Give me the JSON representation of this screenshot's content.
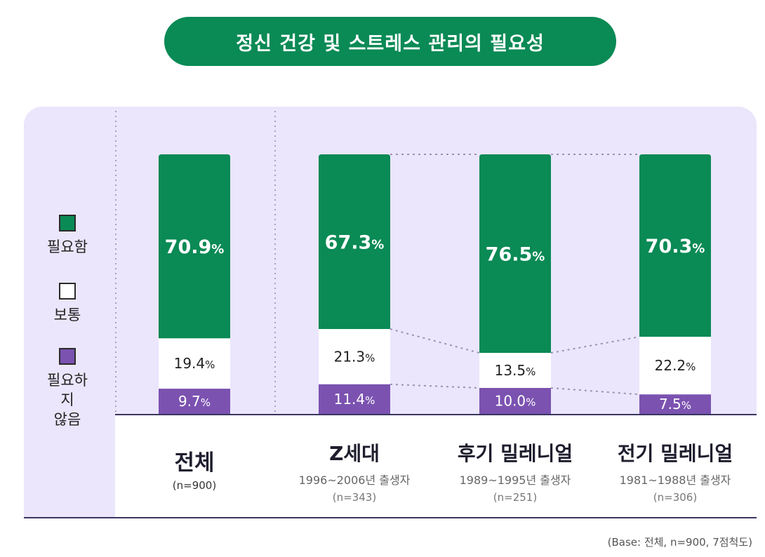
{
  "title": "정신 건강 및 스트레스 관리의 필요성",
  "legend": [
    {
      "label": "필요함",
      "color": "#0a8a55"
    },
    {
      "label": "보통",
      "color": "#ffffff"
    },
    {
      "label": "필요하지\n않음",
      "color": "#7b52b0"
    }
  ],
  "source": "(Base: 전체, n=900, 7점척도)",
  "chart_data": {
    "type": "bar",
    "stacked": true,
    "percent_suffix": "%",
    "groups": [
      {
        "name": "전체",
        "years": "",
        "n": "(n=900)"
      },
      {
        "name": "Z세대",
        "years": "1996~2006년 출생자",
        "n": "(n=343)"
      },
      {
        "name": "후기 밀레니얼",
        "years": "1989~1995년 출생자",
        "n": "(n=251)"
      },
      {
        "name": "전기 밀레니얼",
        "years": "1981~1988년 출생자",
        "n": "(n=306)"
      }
    ],
    "series": [
      {
        "name": "필요함",
        "color": "#0a8a55",
        "values": [
          70.9,
          67.3,
          76.5,
          70.3
        ]
      },
      {
        "name": "보통",
        "color": "#ffffff",
        "values": [
          19.4,
          21.3,
          13.5,
          22.2
        ]
      },
      {
        "name": "필요하지 않음",
        "color": "#7b52b0",
        "values": [
          9.7,
          11.4,
          10.0,
          7.5
        ]
      }
    ],
    "ylim": [
      0,
      100
    ]
  }
}
